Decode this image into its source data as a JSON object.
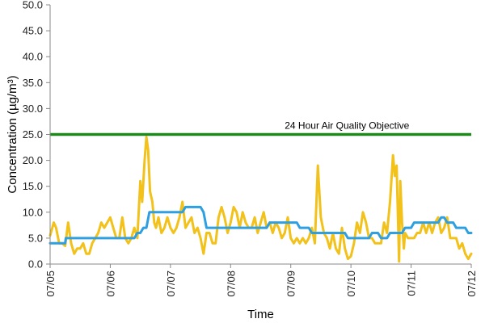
{
  "chart_data": {
    "type": "line",
    "xlabel": "Time",
    "ylabel": "Concentration (µg/m³)",
    "x_tick_labels": [
      "07/05",
      "07/06",
      "07/07",
      "07/08",
      "07/09",
      "07/10",
      "07/11",
      "07/12"
    ],
    "y_tick_labels": [
      "0.0",
      "5.0",
      "10.0",
      "15.0",
      "20.0",
      "25.0",
      "30.0",
      "35.0",
      "40.0",
      "45.0",
      "50.0"
    ],
    "ylim": [
      0,
      50
    ],
    "xlim_days": [
      0,
      7
    ],
    "grid": false,
    "colors": {
      "hourly": "#f2c11a",
      "rolling": "#2e9fe0",
      "objective": "#1a8a1a",
      "axis": "#888888"
    },
    "annotations": [
      {
        "text": "24 Hour Air Quality Objective",
        "x_day": 5.97,
        "y": 25.8
      }
    ],
    "objective": {
      "y": 25
    },
    "series": [
      {
        "key": "hourly",
        "points": [
          [
            0.0,
            5.5
          ],
          [
            0.06,
            8.0
          ],
          [
            0.1,
            7.0
          ],
          [
            0.15,
            4.0
          ],
          [
            0.2,
            4.0
          ],
          [
            0.25,
            3.5
          ],
          [
            0.3,
            8.0
          ],
          [
            0.35,
            4.0
          ],
          [
            0.4,
            2.0
          ],
          [
            0.45,
            3.0
          ],
          [
            0.5,
            3.0
          ],
          [
            0.55,
            4.0
          ],
          [
            0.6,
            2.0
          ],
          [
            0.65,
            2.0
          ],
          [
            0.7,
            4.0
          ],
          [
            0.75,
            5.0
          ],
          [
            0.8,
            6.0
          ],
          [
            0.85,
            8.0
          ],
          [
            0.9,
            7.0
          ],
          [
            0.95,
            8.0
          ],
          [
            1.0,
            9.0
          ],
          [
            1.05,
            7.0
          ],
          [
            1.1,
            5.0
          ],
          [
            1.15,
            5.0
          ],
          [
            1.2,
            9.0
          ],
          [
            1.25,
            5.0
          ],
          [
            1.3,
            4.0
          ],
          [
            1.35,
            5.0
          ],
          [
            1.4,
            7.0
          ],
          [
            1.45,
            5.0
          ],
          [
            1.5,
            16.0
          ],
          [
            1.53,
            12.0
          ],
          [
            1.57,
            20.0
          ],
          [
            1.6,
            24.5
          ],
          [
            1.63,
            22.0
          ],
          [
            1.66,
            14.0
          ],
          [
            1.7,
            12.0
          ],
          [
            1.73,
            8.0
          ],
          [
            1.76,
            7.0
          ],
          [
            1.8,
            9.0
          ],
          [
            1.85,
            6.0
          ],
          [
            1.9,
            7.0
          ],
          [
            1.95,
            9.0
          ],
          [
            2.0,
            7.0
          ],
          [
            2.05,
            6.0
          ],
          [
            2.1,
            7.0
          ],
          [
            2.15,
            9.0
          ],
          [
            2.2,
            12.0
          ],
          [
            2.25,
            7.0
          ],
          [
            2.3,
            8.0
          ],
          [
            2.35,
            9.0
          ],
          [
            2.4,
            6.0
          ],
          [
            2.45,
            7.0
          ],
          [
            2.5,
            5.0
          ],
          [
            2.55,
            2.0
          ],
          [
            2.6,
            6.0
          ],
          [
            2.65,
            6.0
          ],
          [
            2.7,
            4.0
          ],
          [
            2.75,
            4.0
          ],
          [
            2.8,
            9.0
          ],
          [
            2.85,
            11.0
          ],
          [
            2.9,
            9.0
          ],
          [
            2.95,
            6.0
          ],
          [
            3.0,
            8.0
          ],
          [
            3.05,
            11.0
          ],
          [
            3.1,
            10.0
          ],
          [
            3.15,
            7.0
          ],
          [
            3.2,
            10.0
          ],
          [
            3.25,
            8.0
          ],
          [
            3.3,
            7.0
          ],
          [
            3.35,
            7.0
          ],
          [
            3.4,
            9.0
          ],
          [
            3.45,
            6.0
          ],
          [
            3.5,
            8.0
          ],
          [
            3.55,
            10.0
          ],
          [
            3.6,
            7.0
          ],
          [
            3.65,
            8.0
          ],
          [
            3.7,
            6.0
          ],
          [
            3.75,
            8.0
          ],
          [
            3.8,
            7.0
          ],
          [
            3.85,
            5.0
          ],
          [
            3.9,
            6.0
          ],
          [
            3.95,
            9.0
          ],
          [
            4.0,
            5.0
          ],
          [
            4.05,
            4.0
          ],
          [
            4.1,
            5.0
          ],
          [
            4.15,
            4.0
          ],
          [
            4.2,
            5.0
          ],
          [
            4.25,
            4.0
          ],
          [
            4.3,
            5.0
          ],
          [
            4.35,
            7.0
          ],
          [
            4.4,
            4.0
          ],
          [
            4.45,
            19.0
          ],
          [
            4.5,
            9.0
          ],
          [
            4.55,
            6.0
          ],
          [
            4.6,
            5.0
          ],
          [
            4.65,
            3.0
          ],
          [
            4.7,
            6.0
          ],
          [
            4.75,
            3.0
          ],
          [
            4.8,
            2.0
          ],
          [
            4.85,
            7.0
          ],
          [
            4.9,
            3.0
          ],
          [
            4.95,
            1.0
          ],
          [
            5.0,
            1.5
          ],
          [
            5.05,
            4.0
          ],
          [
            5.1,
            8.0
          ],
          [
            5.15,
            6.0
          ],
          [
            5.2,
            10.0
          ],
          [
            5.25,
            8.0
          ],
          [
            5.3,
            5.0
          ],
          [
            5.35,
            5.0
          ],
          [
            5.4,
            4.0
          ],
          [
            5.45,
            4.0
          ],
          [
            5.5,
            4.0
          ],
          [
            5.55,
            8.0
          ],
          [
            5.6,
            6.0
          ],
          [
            5.65,
            12.0
          ],
          [
            5.7,
            21.0
          ],
          [
            5.73,
            17.0
          ],
          [
            5.76,
            19.0
          ],
          [
            5.8,
            0.5
          ],
          [
            5.82,
            16.0
          ],
          [
            5.85,
            8.0
          ],
          [
            5.88,
            3.0
          ],
          [
            5.9,
            6.0
          ],
          [
            5.95,
            5.0
          ],
          [
            6.0,
            5.0
          ],
          [
            6.05,
            5.0
          ],
          [
            6.1,
            6.0
          ],
          [
            6.15,
            6.0
          ],
          [
            6.2,
            8.0
          ],
          [
            6.25,
            6.0
          ],
          [
            6.3,
            8.0
          ],
          [
            6.35,
            6.0
          ],
          [
            6.4,
            8.0
          ],
          [
            6.45,
            9.0
          ],
          [
            6.5,
            6.0
          ],
          [
            6.55,
            7.0
          ],
          [
            6.6,
            9.0
          ],
          [
            6.65,
            5.0
          ],
          [
            6.7,
            5.0
          ],
          [
            6.75,
            5.0
          ],
          [
            6.8,
            3.0
          ],
          [
            6.85,
            4.0
          ],
          [
            6.9,
            2.0
          ],
          [
            6.95,
            1.0
          ],
          [
            7.0,
            2.0
          ]
        ]
      },
      {
        "key": "rolling",
        "points": [
          [
            0.0,
            4.0
          ],
          [
            0.25,
            4.0
          ],
          [
            0.26,
            5.0
          ],
          [
            1.4,
            5.0
          ],
          [
            1.45,
            6.0
          ],
          [
            1.5,
            6.0
          ],
          [
            1.55,
            7.0
          ],
          [
            1.6,
            7.0
          ],
          [
            1.65,
            10.0
          ],
          [
            2.2,
            10.0
          ],
          [
            2.25,
            11.0
          ],
          [
            2.5,
            11.0
          ],
          [
            2.55,
            10.0
          ],
          [
            2.6,
            7.0
          ],
          [
            3.6,
            7.0
          ],
          [
            3.65,
            8.0
          ],
          [
            4.1,
            8.0
          ],
          [
            4.15,
            7.0
          ],
          [
            4.3,
            7.0
          ],
          [
            4.35,
            6.0
          ],
          [
            4.9,
            6.0
          ],
          [
            4.95,
            5.0
          ],
          [
            5.3,
            5.0
          ],
          [
            5.35,
            6.0
          ],
          [
            5.45,
            6.0
          ],
          [
            5.5,
            5.0
          ],
          [
            5.6,
            5.0
          ],
          [
            5.65,
            6.0
          ],
          [
            5.85,
            6.0
          ],
          [
            5.9,
            7.0
          ],
          [
            6.0,
            7.0
          ],
          [
            6.05,
            8.0
          ],
          [
            6.45,
            8.0
          ],
          [
            6.5,
            9.0
          ],
          [
            6.55,
            9.0
          ],
          [
            6.6,
            8.0
          ],
          [
            6.7,
            8.0
          ],
          [
            6.75,
            7.0
          ],
          [
            6.9,
            7.0
          ],
          [
            6.95,
            6.0
          ],
          [
            7.0,
            6.0
          ]
        ]
      }
    ]
  }
}
